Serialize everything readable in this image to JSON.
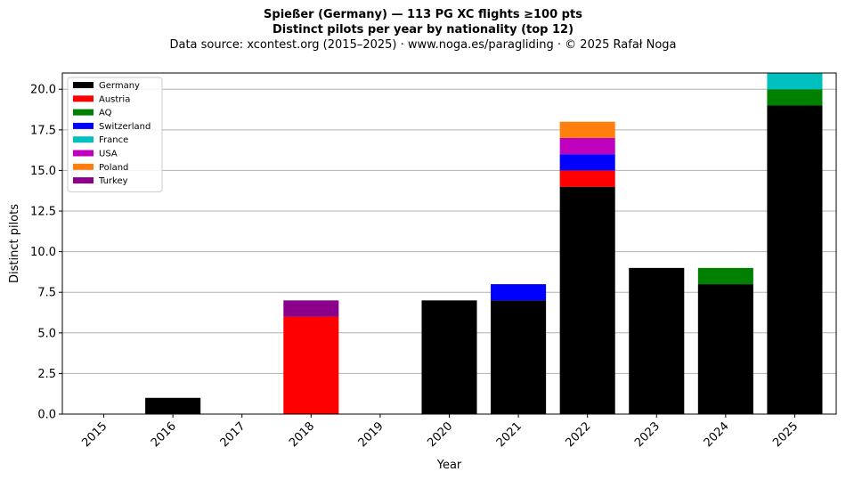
{
  "chart": {
    "title_line1": "Spießer (Germany)  —  113 PG XC flights ≥100 pts",
    "title_line2": "Distinct pilots per year by nationality (top 12)",
    "subtitle": "Data source: xcontest.org (2015–2025)  ·  www.noga.es/paragliding  ·  © 2025 Rafał Noga"
  },
  "chart_data": {
    "type": "bar",
    "stacked": true,
    "title": "Spießer (Germany)  —  113 PG XC flights ≥100 pts\nDistinct pilots per year by nationality (top 12)",
    "subtitle": "Data source: xcontest.org (2015–2025)  ·  www.noga.es/paragliding  ·  © 2025 Rafał Noga",
    "xlabel": "Year",
    "ylabel": "Distinct pilots",
    "categories": [
      "2015",
      "2016",
      "2017",
      "2018",
      "2019",
      "2020",
      "2021",
      "2022",
      "2023",
      "2024",
      "2025"
    ],
    "ylim": [
      0,
      21
    ],
    "yticks": [
      0.0,
      2.5,
      5.0,
      7.5,
      10.0,
      12.5,
      15.0,
      17.5,
      20.0
    ],
    "ytick_labels": [
      "0.0",
      "2.5",
      "5.0",
      "7.5",
      "10.0",
      "12.5",
      "15.0",
      "17.5",
      "20.0"
    ],
    "grid": "horizontal",
    "legend_position": "top-left",
    "series": [
      {
        "name": "Germany",
        "color": "#000000",
        "values": [
          0,
          1,
          0,
          0,
          0,
          7,
          7,
          14,
          9,
          8,
          19
        ]
      },
      {
        "name": "Austria",
        "color": "#ff0000",
        "values": [
          0,
          0,
          0,
          6,
          0,
          0,
          0,
          1,
          0,
          0,
          0
        ]
      },
      {
        "name": "AQ",
        "color": "#008000",
        "values": [
          0,
          0,
          0,
          0,
          0,
          0,
          0,
          0,
          0,
          1,
          1
        ]
      },
      {
        "name": "Switzerland",
        "color": "#0000ff",
        "values": [
          0,
          0,
          0,
          0,
          0,
          0,
          1,
          1,
          0,
          0,
          0
        ]
      },
      {
        "name": "France",
        "color": "#00bfbf",
        "values": [
          0,
          0,
          0,
          0,
          0,
          0,
          0,
          0,
          0,
          0,
          1
        ]
      },
      {
        "name": "USA",
        "color": "#bf00bf",
        "values": [
          0,
          0,
          0,
          0,
          0,
          0,
          0,
          1,
          0,
          0,
          0
        ]
      },
      {
        "name": "Poland",
        "color": "#ff7f0e",
        "values": [
          0,
          0,
          0,
          0,
          0,
          0,
          0,
          1,
          0,
          0,
          0
        ]
      },
      {
        "name": "Turkey",
        "color": "#8b008b",
        "values": [
          0,
          0,
          0,
          1,
          0,
          0,
          0,
          0,
          0,
          0,
          0
        ]
      }
    ]
  }
}
